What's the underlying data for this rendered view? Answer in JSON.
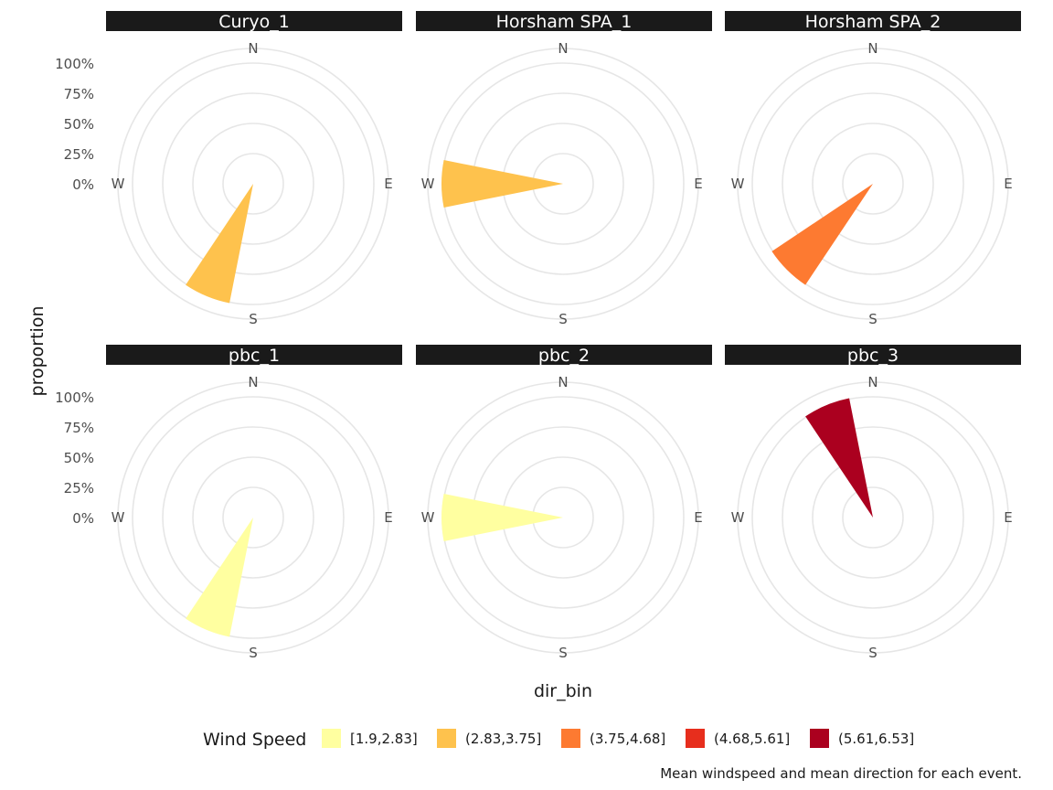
{
  "chart_data": {
    "type": "wind-rose",
    "xlabel": "dir_bin",
    "ylabel": "proportion",
    "y_ticks": [
      "0%",
      "25%",
      "50%",
      "75%",
      "100%"
    ],
    "ylim": [
      0,
      1
    ],
    "direction_labels": [
      "N",
      "E",
      "S",
      "W"
    ],
    "legend": {
      "title": "Wind Speed",
      "position": "bottom",
      "entries": [
        {
          "label": "[1.9,2.83]",
          "color": "#FFFFA0"
        },
        {
          "label": "(2.83,3.75]",
          "color": "#FEC24D"
        },
        {
          "label": "(3.75,4.68]",
          "color": "#FD7A31"
        },
        {
          "label": "(4.68,5.61]",
          "color": "#E72E1D"
        },
        {
          "label": "(5.61,6.53]",
          "color": "#AB001F"
        }
      ]
    },
    "caption": "Mean windspeed and mean direction for each event.",
    "panels": [
      {
        "name": "Curyo_1",
        "dir_bin_deg": 202.5,
        "proportion": 1.0,
        "speed_bin": 1
      },
      {
        "name": "Horsham SPA_1",
        "dir_bin_deg": 270,
        "proportion": 1.0,
        "speed_bin": 1
      },
      {
        "name": "Horsham SPA_2",
        "dir_bin_deg": 225,
        "proportion": 1.0,
        "speed_bin": 2
      },
      {
        "name": "pbc_1",
        "dir_bin_deg": 202.5,
        "proportion": 1.0,
        "speed_bin": 0
      },
      {
        "name": "pbc_2",
        "dir_bin_deg": 270,
        "proportion": 1.0,
        "speed_bin": 0
      },
      {
        "name": "pbc_3",
        "dir_bin_deg": 337.5,
        "proportion": 1.0,
        "speed_bin": 4
      }
    ]
  }
}
